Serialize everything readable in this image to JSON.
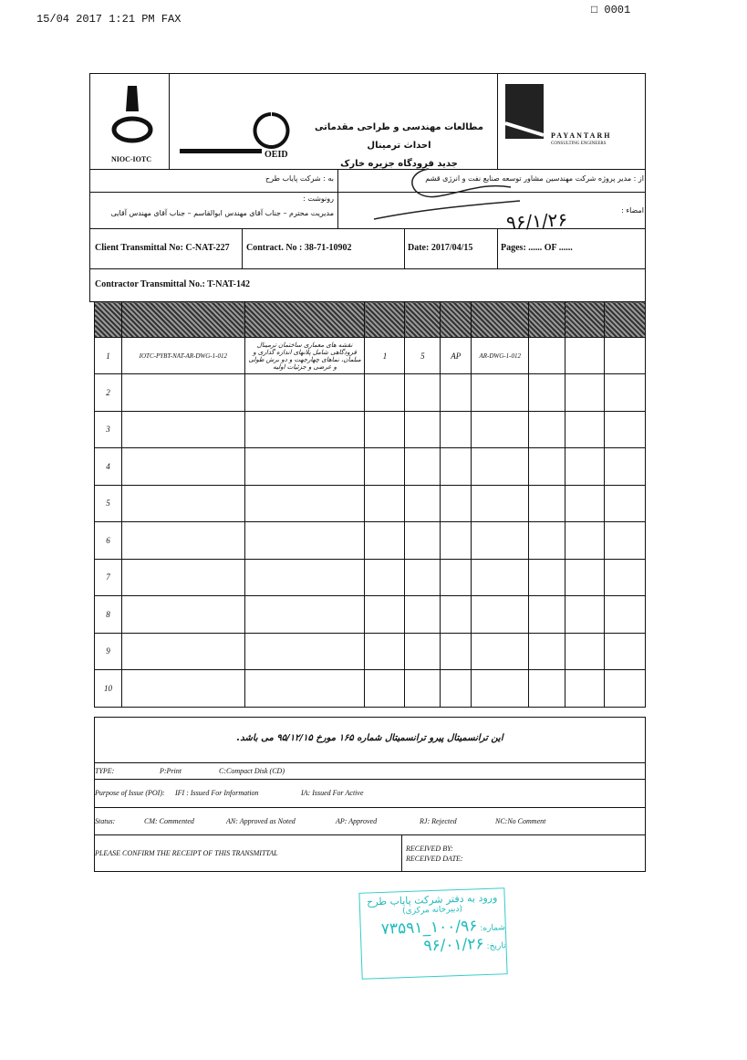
{
  "fax_header": {
    "line": "15/04 2017 1:21 PM FAX",
    "page": "0001"
  },
  "logos": {
    "nioc": "NIOC-IOTC",
    "oeid": "OEID",
    "payantarh": "PAYANTARH",
    "payantarh_sub": "CONSULTING ENGINEERS"
  },
  "header": {
    "title_line1": "مطالعات مهندسی و طراحی مقدماتی احداث ترمینال",
    "title_line2": "جدید فرودگاه جزیره خارک"
  },
  "addressing": {
    "to": "به : شرکت پایاب طرح",
    "from": "از : مدیر پروژه شرکت مهندسین مشاور توسعه صنایع نفت و انرژی قشم",
    "cc_label": "رونوشت :",
    "cc": "مدیریت محترم – جناب آقای مهندس ابوالقاسم – جناب آقای مهندس آقایی",
    "signature_label": "امضاء :",
    "handwritten_date": "۹۶/۱/۲۶"
  },
  "info": {
    "client_transmittal": "Client Transmittal No: C-NAT-227",
    "contract": "Contract. No : 38-71-10902",
    "date": "Date: 2017/04/15",
    "pages": "Pages: ......   OF ......",
    "contractor_transmittal": "Contractor Transmittal No.: T-NAT-142"
  },
  "table": {
    "rows": [
      {
        "no": "1",
        "cells": [
          "IOTC-PYBT-NAT-AR-DWG-1-012",
          "نقشه های معماری ساختمان ترمینال فرودگاهی شامل پلانهای اندازه گذاری و مبلمان، نماهای چهارجهت و دو برش طولی و عرضی و جزئیات اولیه",
          "1",
          "5",
          "AP",
          "AR-DWG-1-012"
        ]
      },
      {
        "no": "2"
      },
      {
        "no": "3"
      },
      {
        "no": "4"
      },
      {
        "no": "5"
      },
      {
        "no": "6"
      },
      {
        "no": "7"
      },
      {
        "no": "8"
      },
      {
        "no": "9"
      },
      {
        "no": "10"
      }
    ]
  },
  "note": "این ترانسمیتال پیرو ترانسمیتال شماره ۱۶۵ مورخ ۹۵/۱۲/۱۵ می باشد.",
  "legend": {
    "type_label": "TYPE:",
    "type_p": "P:Print",
    "type_c": "C:Compact Disk (CD)",
    "poi_label": "Purpose of Issue (POI):",
    "poi_ifi": "IFI : Issued For Information",
    "poi_ia": "IA: Issued For Active",
    "status_label": "Status:",
    "status_cm": "CM: Commented",
    "status_an": "AN: Approved as Noted",
    "status_ap": "AP: Approved",
    "status_rj": "RJ: Rejected",
    "status_nc": "NC:No Comment"
  },
  "footer": {
    "confirm": "PLEASE CONFIRM THE RECEIPT OF THIS TRANSMITTAL",
    "received_by": "RECEIVED BY:",
    "received_date": "RECEIVED DATE:"
  },
  "stamp": {
    "line1": "ورود به دفتر شرکت پایاب طرح",
    "line2": "(دبیرخانه مرکزی)",
    "number_label": "شماره:",
    "number": "۱۰۰/۹۶_۷۳۵۹۱",
    "date_label": "تاریخ:",
    "date": "۹۶/۰۱/۲۶"
  }
}
